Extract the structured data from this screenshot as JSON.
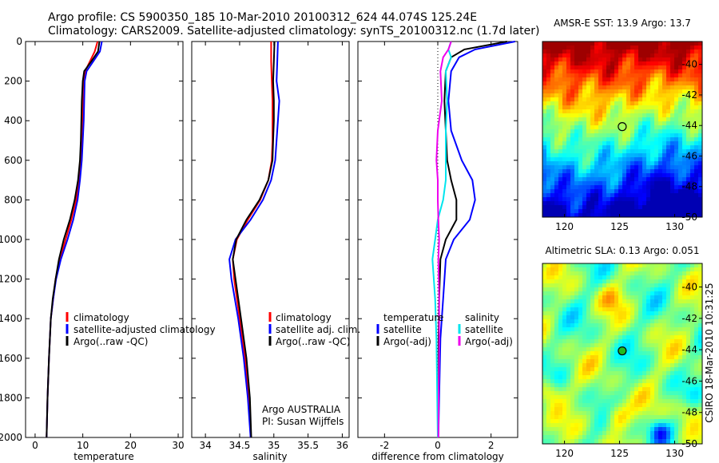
{
  "header": {
    "line1": "Argo profile: CS 5900350_185 10-Mar-2010 20100312_624 44.074S 125.24E",
    "line2": "Climatology: CARS2009. Satellite-adjusted climatology: synTS_20100312.nc (1.7d later)"
  },
  "colors": {
    "climatology": "#ff0000",
    "satellite": "#0000ff",
    "argo": "#000000",
    "sal_satellite": "#00e5ee",
    "sal_argo": "#ee00ee"
  },
  "chart_data": [
    {
      "type": "line",
      "id": "temperature",
      "xlabel": "temperature",
      "xlim": [
        -2,
        31
      ],
      "xticks": [
        0,
        10,
        20,
        30
      ],
      "ylim": [
        2000,
        0
      ],
      "yticks": [
        0,
        200,
        400,
        600,
        800,
        1000,
        1200,
        1400,
        1600,
        1800,
        2000
      ],
      "legend": [
        "climatology",
        "satellite-adjusted climatology",
        "Argo(..raw -QC)"
      ],
      "series": [
        {
          "name": "climatology",
          "color": "#ff0000",
          "x": [
            13.1,
            12.5,
            11.5,
            10.5,
            10.1,
            10.0,
            9.9,
            9.7,
            9.5,
            9.2,
            8.6,
            7.6,
            6.4,
            5.2,
            4.3,
            3.8,
            3.3,
            2.9,
            2.6,
            2.4
          ],
          "y": [
            0,
            50,
            100,
            150,
            200,
            300,
            400,
            500,
            600,
            700,
            800,
            900,
            1000,
            1100,
            1200,
            1300,
            1400,
            1600,
            1800,
            2000
          ]
        },
        {
          "name": "satellite-adjusted climatology",
          "color": "#0000ff",
          "x": [
            14.0,
            13.6,
            12.2,
            10.8,
            10.4,
            10.3,
            10.2,
            10.0,
            9.8,
            9.4,
            8.9,
            8.0,
            6.8,
            5.4,
            4.4,
            3.8,
            3.3,
            2.9,
            2.6,
            2.4
          ],
          "y": [
            0,
            50,
            100,
            150,
            200,
            300,
            400,
            500,
            600,
            700,
            800,
            900,
            1000,
            1100,
            1200,
            1300,
            1400,
            1600,
            1800,
            2000
          ]
        },
        {
          "name": "Argo(..raw -QC)",
          "color": "#000000",
          "x": [
            13.5,
            13.2,
            11.8,
            10.3,
            10.0,
            9.8,
            9.7,
            9.6,
            9.4,
            9.0,
            8.3,
            7.3,
            6.0,
            5.0,
            4.3,
            3.7,
            3.3,
            2.9,
            2.6,
            2.4
          ],
          "y": [
            0,
            50,
            100,
            150,
            200,
            300,
            400,
            500,
            600,
            700,
            800,
            900,
            1000,
            1100,
            1200,
            1300,
            1400,
            1600,
            1800,
            2000
          ]
        }
      ]
    },
    {
      "type": "line",
      "id": "salinity",
      "xlabel": "salinity",
      "xlim": [
        33.8,
        36.1
      ],
      "xticks": [
        34,
        34.5,
        35,
        35.5,
        36
      ],
      "xticklabels": [
        "34",
        "34.5",
        "35",
        "35.5",
        "36"
      ],
      "ylim": [
        2000,
        0
      ],
      "legend": [
        "climatology",
        "satellite adj. clim.",
        "Argo(..raw -QC)"
      ],
      "annotation": [
        "Argo AUSTRALIA",
        "PI: Susan Wijffels"
      ],
      "series": [
        {
          "name": "climatology",
          "color": "#ff0000",
          "x": [
            34.96,
            34.96,
            34.97,
            34.98,
            34.98,
            34.98,
            34.97,
            34.92,
            34.8,
            34.62,
            34.46,
            34.4,
            34.42,
            34.5,
            34.58,
            34.64,
            34.66
          ],
          "y": [
            0,
            100,
            200,
            300,
            400,
            500,
            600,
            700,
            800,
            900,
            1000,
            1100,
            1200,
            1400,
            1600,
            1800,
            2000
          ]
        },
        {
          "name": "satellite adj. clim.",
          "color": "#0000ff",
          "x": [
            35.06,
            35.05,
            35.04,
            35.08,
            35.06,
            35.04,
            35.02,
            34.96,
            34.84,
            34.66,
            34.44,
            34.35,
            34.38,
            34.48,
            34.56,
            34.62,
            34.66
          ],
          "y": [
            0,
            100,
            200,
            300,
            400,
            500,
            600,
            700,
            800,
            900,
            1000,
            1100,
            1200,
            1400,
            1600,
            1800,
            2000
          ]
        },
        {
          "name": "Argo(..raw -QC)",
          "color": "#000000",
          "x": [
            35.01,
            35.0,
            34.99,
            35.0,
            35.0,
            34.99,
            34.98,
            34.92,
            34.79,
            34.6,
            34.45,
            34.4,
            34.44,
            34.52,
            34.6,
            34.65,
            34.67
          ],
          "y": [
            0,
            100,
            200,
            300,
            400,
            500,
            600,
            700,
            800,
            900,
            1000,
            1100,
            1200,
            1400,
            1600,
            1800,
            2000
          ]
        }
      ]
    },
    {
      "type": "line",
      "id": "difference",
      "xlabel": "difference from climatology",
      "xlim": [
        -3,
        3
      ],
      "xticks": [
        -2,
        0,
        2
      ],
      "ylim": [
        2000,
        0
      ],
      "legend_left_title": "temperature",
      "legend_right_title": "salinity",
      "legend_left": [
        "satellite",
        "Argo(-adj)"
      ],
      "legend_right": [
        "satellite",
        "Argo(-adj)"
      ],
      "series": [
        {
          "name": "temperature satellite",
          "color": "#0000ff",
          "x": [
            2.9,
            1.4,
            0.8,
            0.5,
            0.4,
            0.5,
            0.9,
            1.3,
            1.4,
            1.2,
            0.6,
            0.3,
            0.2,
            0.1,
            0.05,
            0.02
          ],
          "y": [
            0,
            40,
            80,
            150,
            300,
            450,
            600,
            700,
            800,
            900,
            1000,
            1100,
            1300,
            1500,
            1800,
            2000
          ]
        },
        {
          "name": "temperature Argo(-adj)",
          "color": "#000000",
          "x": [
            2.6,
            1.0,
            0.5,
            0.3,
            0.25,
            0.3,
            0.35,
            0.5,
            0.7,
            0.7,
            0.3,
            0.1,
            0.05,
            0.03,
            0.02,
            0.01
          ],
          "y": [
            0,
            40,
            80,
            150,
            300,
            450,
            600,
            700,
            800,
            900,
            1000,
            1100,
            1300,
            1500,
            1800,
            2000
          ]
        },
        {
          "name": "salinity satellite",
          "color": "#00e5ee",
          "x": [
            0.5,
            0.4,
            0.5,
            0.3,
            0.35,
            0.3,
            0.3,
            0.3,
            0.2,
            0.0,
            -0.1,
            -0.2,
            -0.1,
            -0.05,
            -0.02,
            0.0
          ],
          "y": [
            0,
            40,
            80,
            150,
            300,
            450,
            600,
            700,
            800,
            900,
            1000,
            1100,
            1300,
            1500,
            1800,
            2000
          ]
        },
        {
          "name": "salinity Argo(-adj)",
          "color": "#ee00ee",
          "x": [
            0.5,
            0.4,
            0.2,
            0.1,
            0.15,
            0.0,
            -0.05,
            0.0,
            0.0,
            0.02,
            0.05,
            0.02,
            0.05,
            0.05,
            0.03,
            0.02
          ],
          "y": [
            0,
            40,
            80,
            150,
            300,
            450,
            600,
            700,
            800,
            900,
            1000,
            1100,
            1300,
            1500,
            1800,
            2000
          ]
        }
      ]
    },
    {
      "type": "heatmap",
      "id": "sst",
      "title": "AMSR-E SST: 13.9 Argo: 13.7",
      "xlim": [
        118,
        132.5
      ],
      "ylim": [
        -50,
        -38.5
      ],
      "xticks": [
        120,
        125,
        130
      ],
      "yticks": [
        -40,
        -42,
        -44,
        -46,
        -48,
        -50
      ],
      "marker": {
        "lon": 125.24,
        "lat": -44.074
      }
    },
    {
      "type": "heatmap",
      "id": "sla",
      "title": "Altimetric SLA: 0.13 Argo: 0.051",
      "xlim": [
        118,
        132.5
      ],
      "ylim": [
        -50,
        -38.5
      ],
      "xticks": [
        120,
        125,
        130
      ],
      "yticks": [
        -40,
        -42,
        -44,
        -46,
        -48,
        -50
      ],
      "marker": {
        "lon": 125.24,
        "lat": -44.074
      }
    }
  ],
  "credit": "CSIRO 18-Mar-2010 10:31:25"
}
